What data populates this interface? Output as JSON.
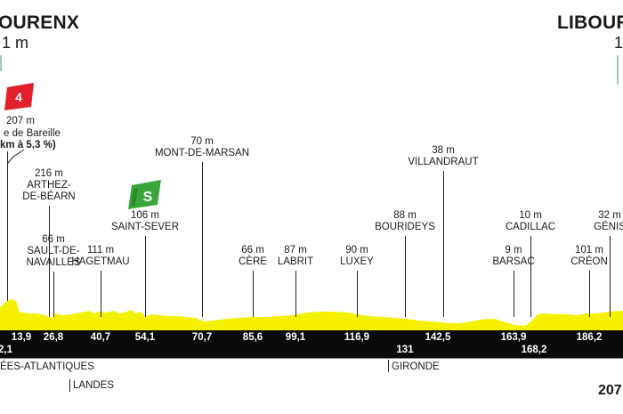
{
  "stage": {
    "start": {
      "name": "OURENX",
      "altitude": "1 m"
    },
    "finish": {
      "name": "LIBOUR",
      "altitude": "1"
    },
    "total_distance": "207"
  },
  "climbs": [
    {
      "category": "4",
      "color": "#e0202a",
      "altitude": "207 m",
      "name": "e de Bareille",
      "detail": "km à 5,3 %)"
    }
  ],
  "sprints": [
    {
      "label": "S",
      "color": "#3aa53a"
    }
  ],
  "waypoints": [
    {
      "id": "arthez",
      "alt": "216 m",
      "name_lines": [
        "ARTHEZ-",
        "DE-BÉARN"
      ],
      "km": ""
    },
    {
      "id": "sault",
      "alt": "66 m",
      "name_lines": [
        "SAULT-DE-",
        "NAVAILLES"
      ],
      "km": "26,8"
    },
    {
      "id": "hagetmau",
      "alt": "111 m",
      "name_lines": [
        "HAGETMAU"
      ],
      "km": "40,7"
    },
    {
      "id": "saint-sever",
      "alt": "106 m",
      "name_lines": [
        "SAINT-SEVER"
      ],
      "km": "54,1"
    },
    {
      "id": "mont-de-marsan",
      "alt": "70 m",
      "name_lines": [
        "MONT-DE-MARSAN"
      ],
      "km": "70,7"
    },
    {
      "id": "cere",
      "alt": "66 m",
      "name_lines": [
        "CÈRE"
      ],
      "km": "85,6"
    },
    {
      "id": "labrit",
      "alt": "87 m",
      "name_lines": [
        "LABRIT"
      ],
      "km": "99,1"
    },
    {
      "id": "luxey",
      "alt": "90 m",
      "name_lines": [
        "LUXEY"
      ],
      "km": "116,9"
    },
    {
      "id": "bourideys",
      "alt": "88 m",
      "name_lines": [
        "BOURIDEYS"
      ],
      "km": "131"
    },
    {
      "id": "villandraut",
      "alt": "38 m",
      "name_lines": [
        "VILLANDRAUT"
      ],
      "km": "142,5"
    },
    {
      "id": "barsac",
      "alt": "9 m",
      "name_lines": [
        "BARSAC"
      ],
      "km": "163,9"
    },
    {
      "id": "cadillac",
      "alt": "10 m",
      "name_lines": [
        "CADILLAC"
      ],
      "km": "168,2"
    },
    {
      "id": "creon",
      "alt": "101 m",
      "name_lines": [
        "CRÉON"
      ],
      "km": "186,2"
    },
    {
      "id": "genis",
      "alt": "32 m",
      "name_lines": [
        "GÉNIS"
      ],
      "km": ""
    }
  ],
  "km_markers": [
    "2,1",
    "13,9"
  ],
  "regions": [
    {
      "name": "ÉES-ATLANTIQUES"
    },
    {
      "name": "LANDES"
    },
    {
      "name": "GIRONDE"
    }
  ],
  "colors": {
    "profile_fill": "#f4f000",
    "km_band": "#0a0a0a",
    "region_band": "#ffffff"
  }
}
